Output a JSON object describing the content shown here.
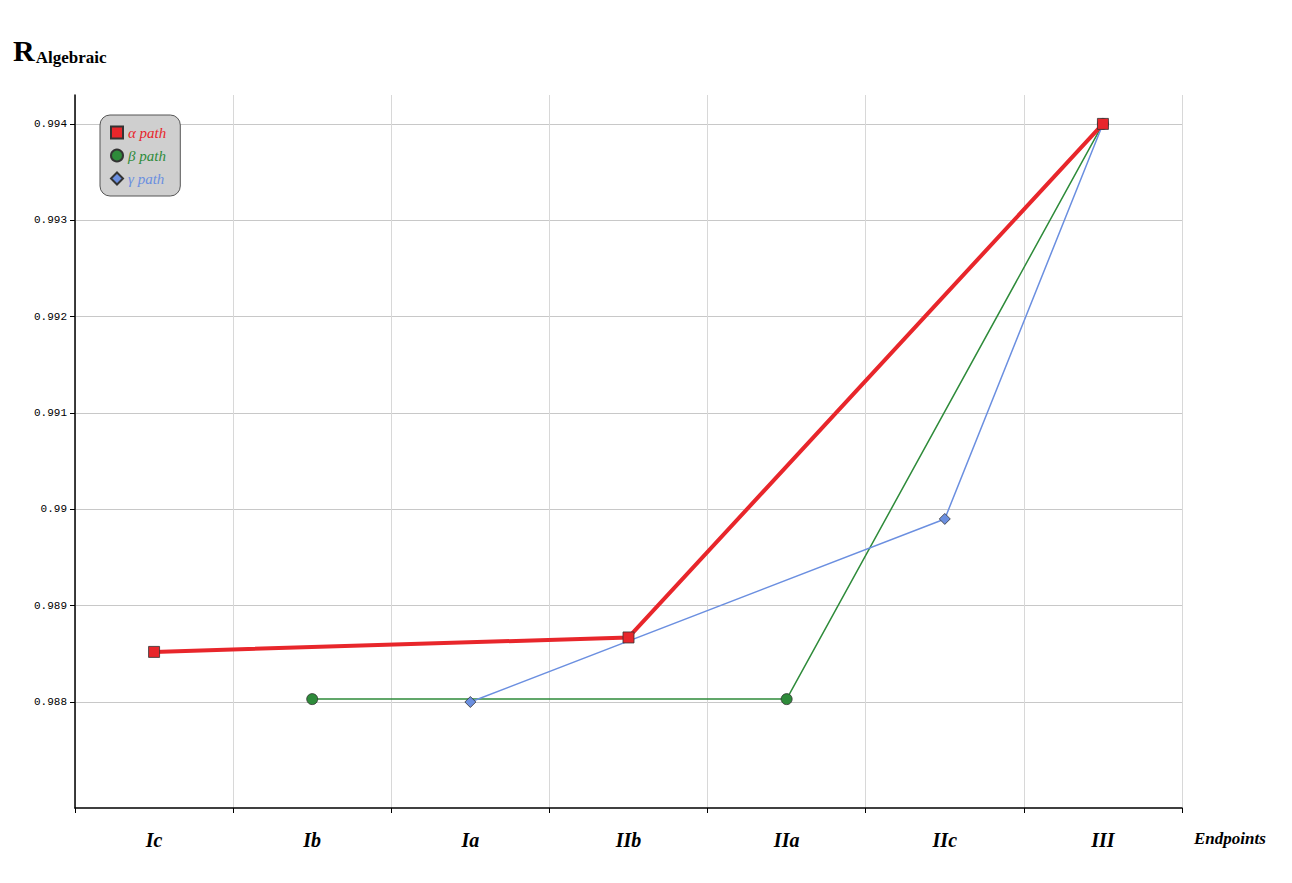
{
  "chart_data": {
    "type": "line",
    "y_label": "R",
    "y_label_subscript": "Algebraic",
    "x_label": "Endpoints",
    "categories": [
      "Ic",
      "Ib",
      "Ia",
      "IIb",
      "IIa",
      "IIc",
      "III"
    ],
    "series": [
      {
        "name": "α path",
        "color": "#e8262b",
        "marker": "square",
        "values": [
          0.98852,
          null,
          null,
          0.98867,
          null,
          null,
          0.994
        ]
      },
      {
        "name": "β path",
        "color": "#2e8b3a",
        "marker": "circle",
        "values": [
          null,
          0.98803,
          null,
          null,
          0.98803,
          null,
          0.994
        ]
      },
      {
        "name": "γ path",
        "color": "#6b8fe0",
        "marker": "diamond",
        "values": [
          null,
          null,
          0.988,
          null,
          null,
          0.9899,
          0.994
        ]
      }
    ],
    "ylim": [
      0.9869,
      0.9943
    ],
    "yticks": [
      0.988,
      0.989,
      0.99,
      0.991,
      0.992,
      0.993,
      0.994
    ],
    "grid": true,
    "legend": "upper left"
  }
}
